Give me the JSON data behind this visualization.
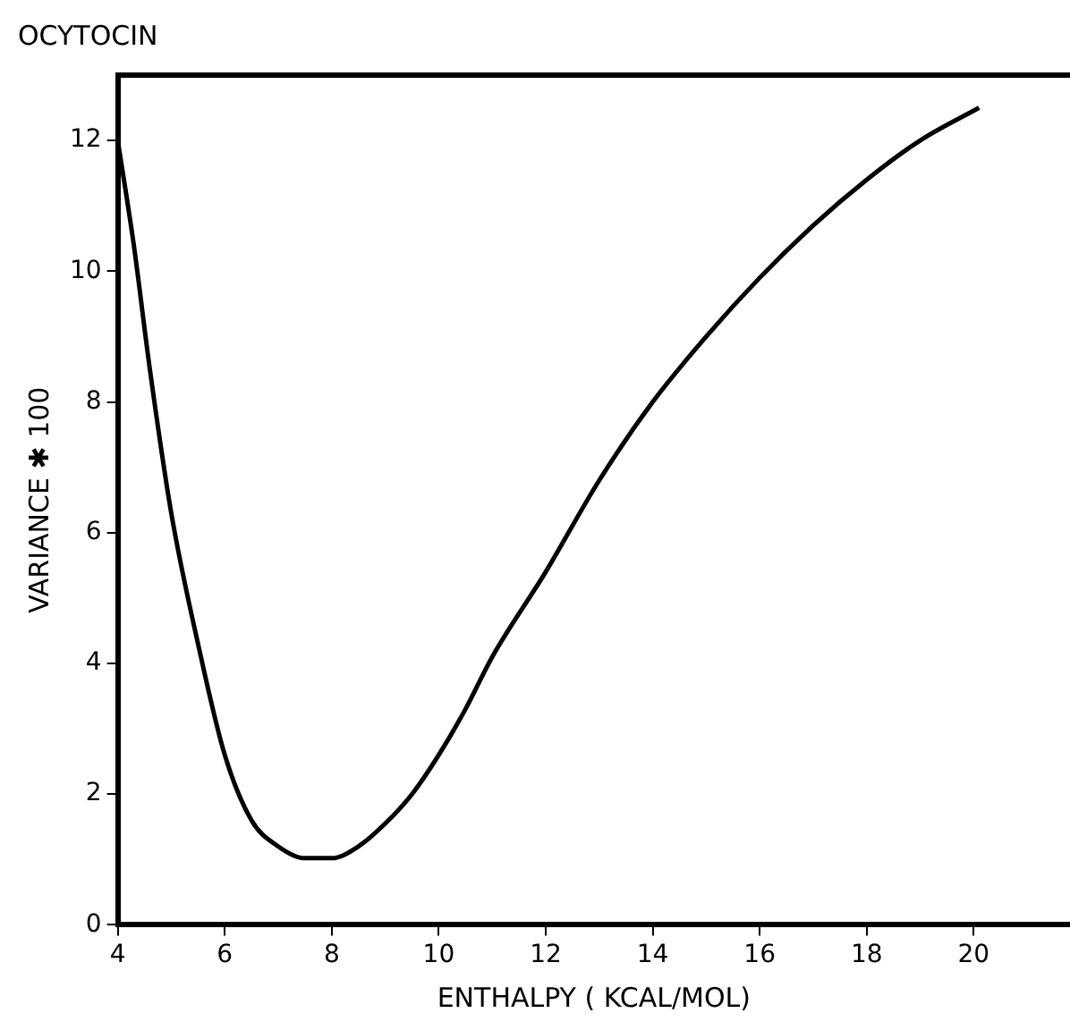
{
  "chart_data": {
    "type": "line",
    "title": "OCYTOCIN",
    "xlabel": "ENTHALPY ( KCAL/MOL)",
    "ylabel": "VARIANCE ✱ 100",
    "x": [
      4,
      4.3,
      4.6,
      5,
      5.5,
      6,
      6.5,
      7,
      7.5,
      8,
      8.5,
      9,
      9.5,
      10,
      10.5,
      11,
      12,
      13,
      14,
      15,
      16,
      17,
      18,
      19,
      20.1
    ],
    "series": [
      {
        "color": "#000000",
        "values": [
          12,
          10.4,
          8.5,
          6.3,
          4.3,
          2.6,
          1.6,
          1.2,
          1.02,
          1.02,
          1.2,
          1.55,
          2.0,
          2.6,
          3.3,
          4.1,
          5.4,
          6.8,
          8.0,
          9.0,
          9.9,
          10.7,
          11.4,
          12.0,
          12.5
        ]
      }
    ],
    "xlim": [
      4,
      21.8
    ],
    "xticks": [
      4,
      6,
      8,
      10,
      12,
      14,
      16,
      18,
      20
    ],
    "ylim": [
      0,
      13
    ],
    "yticks": [
      0,
      2,
      4,
      6,
      8,
      10,
      12
    ],
    "grid": false,
    "legend": false,
    "marker": "none",
    "line_style": "solid"
  }
}
